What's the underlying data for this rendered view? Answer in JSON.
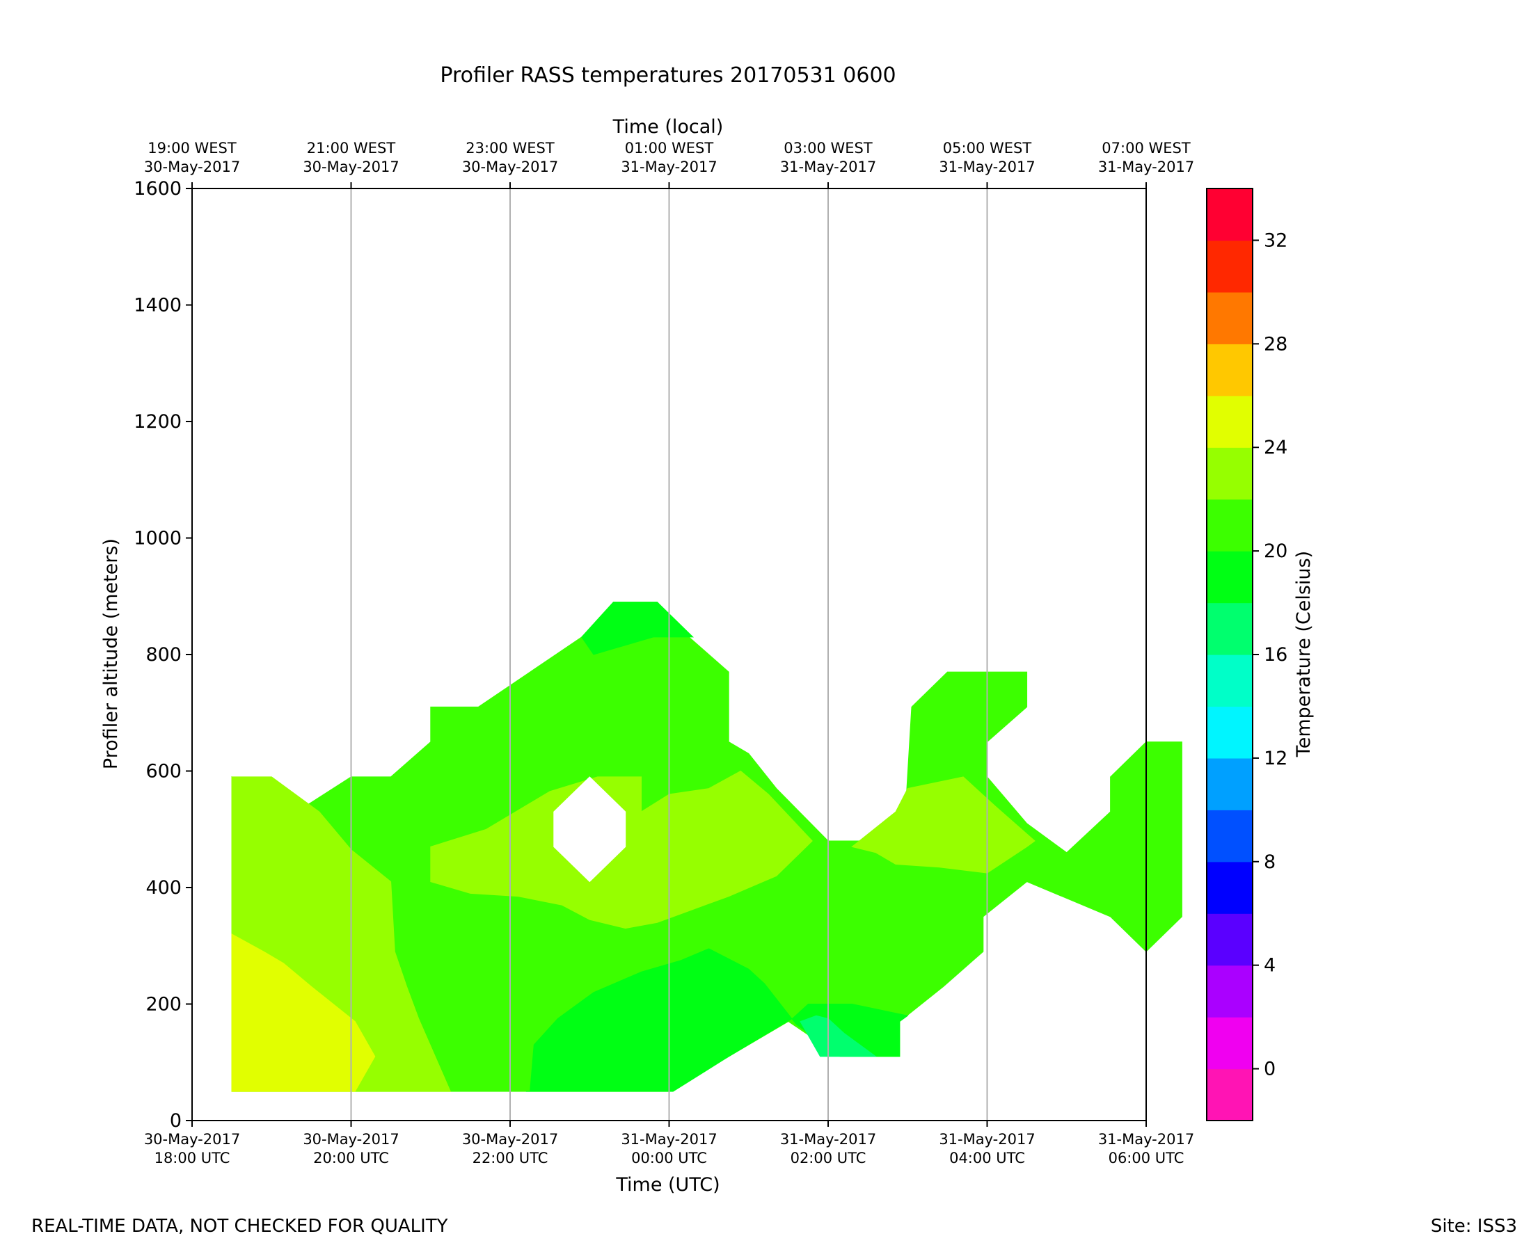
{
  "chart_data": {
    "type": "heatmap",
    "subtype": "filled-contour",
    "title": "Profiler RASS temperatures 20170531 0600",
    "xlabel": "Time (UTC)",
    "xlabel_top": "Time (local)",
    "ylabel": "Profiler altitude (meters)",
    "colorbar_label": "Temperature (Celsius)",
    "x_unit": "hours since 30-May-2017 18:00 UTC",
    "xlim": [
      0,
      12
    ],
    "ylim": [
      0,
      1600
    ],
    "grid": "vertical",
    "x_ticks": [
      {
        "value": 0,
        "line1": "30-May-2017",
        "line2": "18:00 UTC"
      },
      {
        "value": 2,
        "line1": "30-May-2017",
        "line2": "20:00 UTC"
      },
      {
        "value": 4,
        "line1": "30-May-2017",
        "line2": "22:00 UTC"
      },
      {
        "value": 6,
        "line1": "31-May-2017",
        "line2": "00:00 UTC"
      },
      {
        "value": 8,
        "line1": "31-May-2017",
        "line2": "02:00 UTC"
      },
      {
        "value": 10,
        "line1": "31-May-2017",
        "line2": "04:00 UTC"
      },
      {
        "value": 12,
        "line1": "31-May-2017",
        "line2": "06:00 UTC"
      }
    ],
    "x_ticks_top": [
      {
        "value": 0,
        "line1": "19:00 WEST",
        "line2": "30-May-2017"
      },
      {
        "value": 2,
        "line1": "21:00 WEST",
        "line2": "30-May-2017"
      },
      {
        "value": 4,
        "line1": "23:00 WEST",
        "line2": "30-May-2017"
      },
      {
        "value": 6,
        "line1": "01:00 WEST",
        "line2": "31-May-2017"
      },
      {
        "value": 8,
        "line1": "03:00 WEST",
        "line2": "31-May-2017"
      },
      {
        "value": 10,
        "line1": "05:00 WEST",
        "line2": "31-May-2017"
      },
      {
        "value": 12,
        "line1": "07:00 WEST",
        "line2": "31-May-2017"
      }
    ],
    "y_ticks": [
      0,
      200,
      400,
      600,
      800,
      1000,
      1200,
      1400,
      1600
    ],
    "colorbar": {
      "range": [
        -2,
        34
      ],
      "ticks": [
        0,
        4,
        8,
        12,
        16,
        20,
        24,
        28,
        32
      ],
      "levels": [
        {
          "from": -2,
          "to": 0,
          "color": "#ff14b4"
        },
        {
          "from": 0,
          "to": 2,
          "color": "#f000f0"
        },
        {
          "from": 2,
          "to": 4,
          "color": "#aa00ff"
        },
        {
          "from": 4,
          "to": 6,
          "color": "#5a00ff"
        },
        {
          "from": 6,
          "to": 8,
          "color": "#0000ff"
        },
        {
          "from": 8,
          "to": 10,
          "color": "#0050ff"
        },
        {
          "from": 10,
          "to": 12,
          "color": "#00a0ff"
        },
        {
          "from": 12,
          "to": 14,
          "color": "#00f5ff"
        },
        {
          "from": 14,
          "to": 16,
          "color": "#00ffc8"
        },
        {
          "from": 16,
          "to": 18,
          "color": "#00ff6e"
        },
        {
          "from": 18,
          "to": 20,
          "color": "#00ff14"
        },
        {
          "from": 20,
          "to": 22,
          "color": "#3cff00"
        },
        {
          "from": 22,
          "to": 24,
          "color": "#96ff00"
        },
        {
          "from": 24,
          "to": 26,
          "color": "#e1ff00"
        },
        {
          "from": 26,
          "to": 28,
          "color": "#ffc800"
        },
        {
          "from": 28,
          "to": 30,
          "color": "#ff7800"
        },
        {
          "from": 30,
          "to": 32,
          "color": "#ff2800"
        },
        {
          "from": 32,
          "to": 34,
          "color": "#ff0032"
        }
      ]
    },
    "regions": [
      {
        "name": "band-20-22-main",
        "color": "#3cff00",
        "points": [
          [
            0.5,
            590
          ],
          [
            1.2,
            520
          ],
          [
            2,
            590
          ],
          [
            2.5,
            590
          ],
          [
            3,
            650
          ],
          [
            3,
            710
          ],
          [
            3.6,
            710
          ],
          [
            4.9,
            830
          ],
          [
            5.3,
            890
          ],
          [
            5.85,
            890
          ],
          [
            6.25,
            830
          ],
          [
            6.75,
            770
          ],
          [
            6.75,
            650
          ],
          [
            7,
            630
          ],
          [
            7.35,
            570
          ],
          [
            8,
            480
          ],
          [
            8.95,
            480
          ],
          [
            9.05,
            710
          ],
          [
            9.5,
            770
          ],
          [
            10.5,
            770
          ],
          [
            10.5,
            710
          ],
          [
            10,
            650
          ],
          [
            10,
            590
          ],
          [
            10.5,
            510
          ],
          [
            11,
            460
          ],
          [
            11.55,
            530
          ],
          [
            11.55,
            590
          ],
          [
            12,
            650
          ],
          [
            12.45,
            650
          ],
          [
            12.45,
            350
          ],
          [
            12,
            290
          ],
          [
            11.55,
            350
          ],
          [
            10.5,
            410
          ],
          [
            9.95,
            350
          ],
          [
            9.95,
            290
          ],
          [
            9.45,
            230
          ],
          [
            8.9,
            170
          ],
          [
            8.9,
            110
          ],
          [
            8.15,
            110
          ],
          [
            7.5,
            170
          ],
          [
            6.75,
            110
          ],
          [
            6,
            50
          ],
          [
            0.5,
            50
          ]
        ]
      },
      {
        "name": "band-18-20-top",
        "color": "#00ff14",
        "points": [
          [
            4.9,
            830
          ],
          [
            5.3,
            890
          ],
          [
            5.85,
            890
          ],
          [
            6.3,
            830
          ],
          [
            5.8,
            830
          ],
          [
            5.05,
            800
          ],
          [
            4.9,
            830
          ]
        ]
      },
      {
        "name": "band-22-24-left",
        "color": "#96ff00",
        "points": [
          [
            0.5,
            590
          ],
          [
            1.0,
            590
          ],
          [
            1.6,
            530
          ],
          [
            2.0,
            465
          ],
          [
            2.5,
            410
          ],
          [
            2.55,
            290
          ],
          [
            2.7,
            230
          ],
          [
            2.85,
            175
          ],
          [
            3.25,
            50
          ],
          [
            0.5,
            50
          ]
        ]
      },
      {
        "name": "band-24-26-corner",
        "color": "#e1ff00",
        "points": [
          [
            0.5,
            320
          ],
          [
            0.9,
            290
          ],
          [
            1.15,
            270
          ],
          [
            1.5,
            230
          ],
          [
            2.05,
            170
          ],
          [
            2.3,
            110
          ],
          [
            2.05,
            50
          ],
          [
            0.5,
            50
          ]
        ]
      },
      {
        "name": "band-22-24-middle",
        "color": "#96ff00",
        "points": [
          [
            3,
            470
          ],
          [
            3.7,
            500
          ],
          [
            4.5,
            565
          ],
          [
            5.1,
            590
          ],
          [
            5.65,
            590
          ],
          [
            5.65,
            530
          ],
          [
            6.0,
            560
          ],
          [
            6.5,
            570
          ],
          [
            6.9,
            600
          ],
          [
            7.25,
            560
          ],
          [
            7.8,
            480
          ],
          [
            7.35,
            420
          ],
          [
            6.75,
            385
          ],
          [
            6.25,
            360
          ],
          [
            5.85,
            340
          ],
          [
            5.45,
            330
          ],
          [
            5.0,
            345
          ],
          [
            4.65,
            370
          ],
          [
            4.1,
            385
          ],
          [
            3.5,
            390
          ],
          [
            3,
            410
          ]
        ]
      },
      {
        "name": "band-22-24-right",
        "color": "#96ff00",
        "points": [
          [
            8.3,
            470
          ],
          [
            8.85,
            530
          ],
          [
            9.0,
            570
          ],
          [
            9.7,
            590
          ],
          [
            10.1,
            540
          ],
          [
            10.6,
            480
          ],
          [
            10.5,
            470
          ],
          [
            10.0,
            425
          ],
          [
            9.4,
            435
          ],
          [
            8.85,
            440
          ],
          [
            8.6,
            460
          ]
        ]
      },
      {
        "name": "band-18-20-bottom",
        "color": "#00ff14",
        "points": [
          [
            4.2,
            50
          ],
          [
            6.05,
            50
          ],
          [
            6.75,
            110
          ],
          [
            7.55,
            175
          ],
          [
            7.75,
            200
          ],
          [
            8.3,
            200
          ],
          [
            9.0,
            180
          ],
          [
            8.9,
            170
          ],
          [
            8.9,
            110
          ],
          [
            8.15,
            110
          ],
          [
            7.6,
            165
          ],
          [
            7.2,
            235
          ],
          [
            7.0,
            260
          ],
          [
            6.5,
            295
          ],
          [
            6.15,
            275
          ],
          [
            5.65,
            255
          ],
          [
            5.05,
            220
          ],
          [
            4.6,
            175
          ],
          [
            4.3,
            130
          ],
          [
            4.25,
            50
          ]
        ]
      },
      {
        "name": "band-16-18-patch",
        "color": "#00ff6e",
        "points": [
          [
            7.65,
            170
          ],
          [
            7.9,
            110
          ],
          [
            8.6,
            110
          ],
          [
            8.2,
            150
          ],
          [
            8.0,
            175
          ],
          [
            7.85,
            180
          ]
        ]
      },
      {
        "name": "missing-hole",
        "color": "#ffffff",
        "points": [
          [
            4.55,
            530
          ],
          [
            5.0,
            590
          ],
          [
            5.45,
            530
          ],
          [
            5.45,
            470
          ],
          [
            5.0,
            410
          ],
          [
            4.55,
            470
          ]
        ]
      }
    ]
  },
  "footer": {
    "left": "REAL-TIME DATA, NOT CHECKED FOR QUALITY",
    "right": "Site: ISS3"
  }
}
